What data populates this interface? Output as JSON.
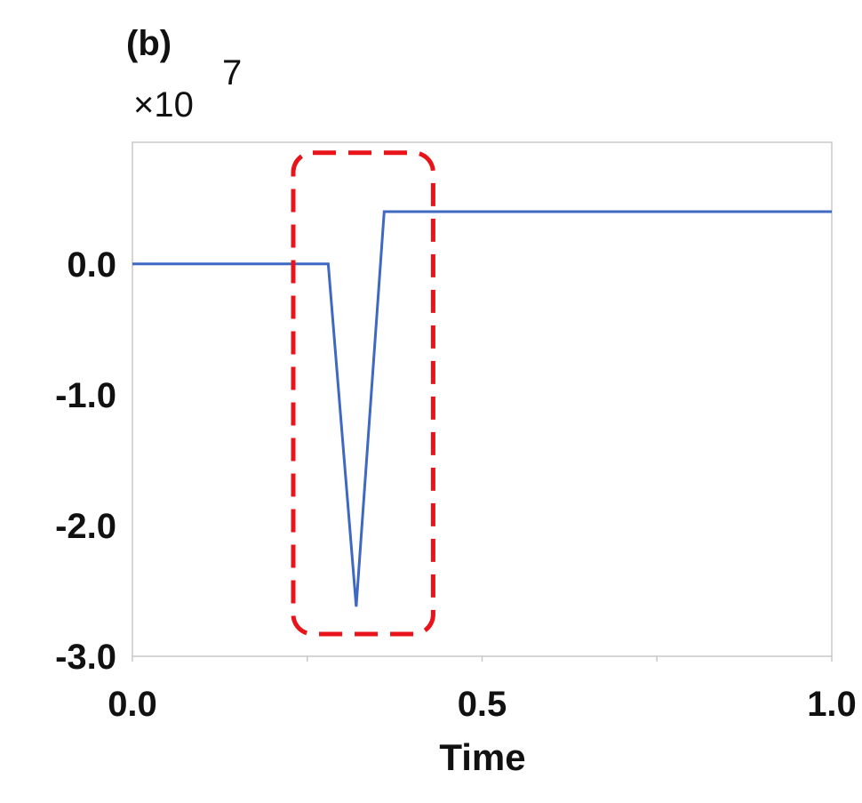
{
  "chart_data": {
    "type": "line",
    "panel_label": "(b)",
    "multiplier": {
      "base": "10",
      "exponent": "7"
    },
    "xlabel": "Time",
    "ylabel": "",
    "xlim": [
      0,
      1
    ],
    "ylim": [
      -3.0,
      0.93
    ],
    "x_ticks": [
      0.0,
      0.25,
      0.5,
      0.75,
      1.0
    ],
    "x_tick_labels": [
      {
        "value": 0.0,
        "label": "0.0"
      },
      {
        "value": 0.5,
        "label": "0.5"
      },
      {
        "value": 1.0,
        "label": "1.0"
      }
    ],
    "y_tick_labels": [
      {
        "value": 0.0,
        "label": "0.0"
      },
      {
        "value": -1.0,
        "label": "-1.0"
      },
      {
        "value": -2.0,
        "label": "-2.0"
      },
      {
        "value": -3.0,
        "label": "-3.0"
      }
    ],
    "grid": false,
    "series": [
      {
        "color": "#3f68c3",
        "x": [
          0.0,
          0.28,
          0.32,
          0.36,
          1.0
        ],
        "y": [
          0.0,
          0.0,
          -2.62,
          0.4,
          0.4
        ]
      }
    ],
    "annotations": [
      {
        "type": "dashed-rounded-box",
        "color": "#e8141a",
        "x_range": [
          0.23,
          0.43
        ],
        "y_range": [
          -2.83,
          0.85
        ]
      }
    ]
  }
}
